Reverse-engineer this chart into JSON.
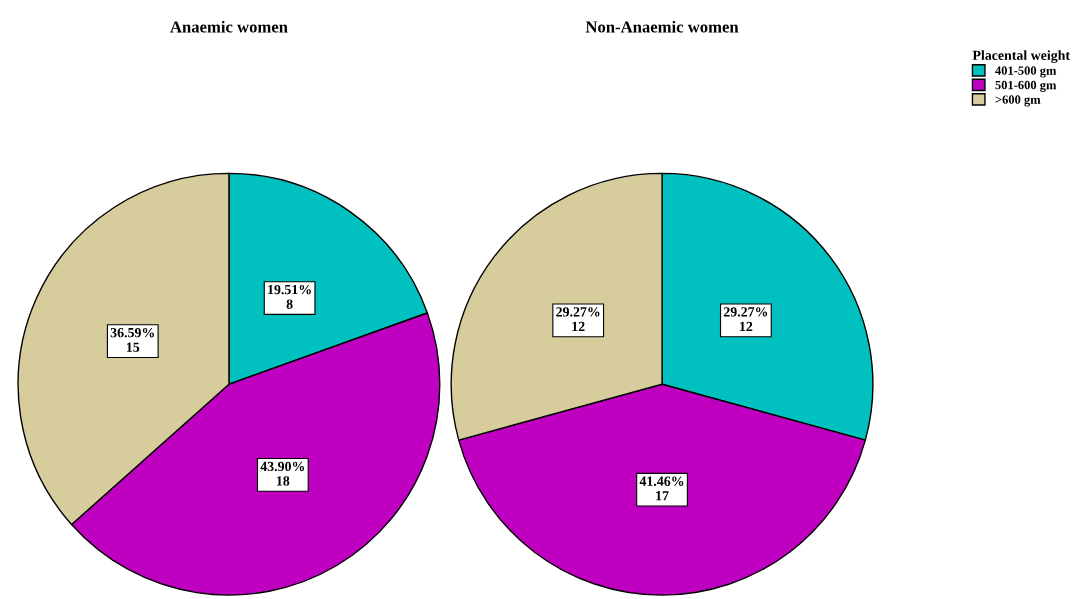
{
  "chart_data": [
    {
      "type": "pie",
      "title": "Anaemic women",
      "categories": [
        "401-500 gm",
        "501-600 gm",
        ">600 gm"
      ],
      "values": [
        8,
        18,
        15
      ],
      "colors": [
        "#00c0c0",
        "#c000c0",
        "#d6cc9c"
      ],
      "value_labels": [
        "19.51%\n8",
        "43.90%\n18",
        "36.59%\n15"
      ],
      "legend": "right",
      "legend_title": "Placental weight"
    },
    {
      "type": "pie",
      "title": "Non-Anaemic women",
      "categories": [
        null,
        null,
        null
      ],
      "values": [
        12,
        17,
        12
      ],
      "colors": [
        "#00c0c0",
        "#c000c0",
        "#d6cc9c"
      ],
      "value_labels": [
        "29.27%\n12",
        "41.46%\n17",
        "29.27%\n12"
      ],
      "legend": false
    }
  ]
}
